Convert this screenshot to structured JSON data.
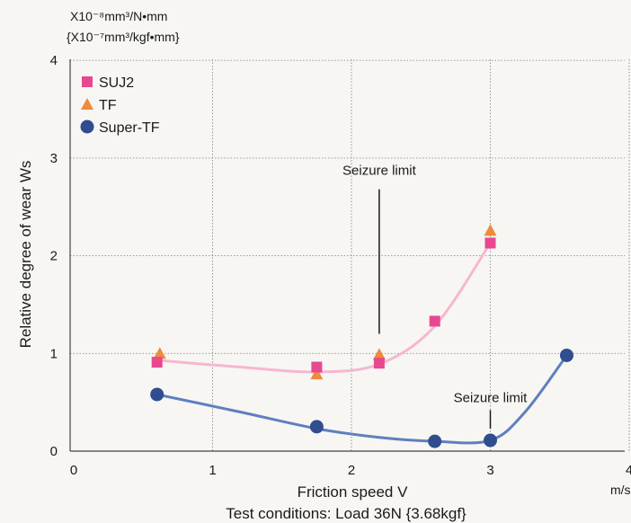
{
  "chart_data": {
    "type": "line",
    "title": "",
    "xlabel": "Friction speed V",
    "x_unit": "m/s",
    "ylabel": "Relative degree of wear Ws",
    "y_unit_lines": [
      "X10⁻⁸mm³/N•mm",
      "{X10⁻⁷mm³/kgf•mm}"
    ],
    "footnote": "Test conditions: Load 36N {3.68kgf}",
    "xlim": [
      0,
      4
    ],
    "ylim": [
      0,
      4
    ],
    "x_ticks": [
      0,
      1,
      2,
      3,
      4
    ],
    "y_ticks": [
      0,
      1,
      2,
      3,
      4
    ],
    "grid": true,
    "legend_position": "top-left",
    "series": [
      {
        "name": "SUJ2",
        "marker": "square",
        "color": "#e8488f",
        "points": [
          [
            0.6,
            0.91
          ],
          [
            1.75,
            0.86
          ],
          [
            2.2,
            0.9
          ],
          [
            2.6,
            1.33
          ],
          [
            3.0,
            2.13
          ]
        ]
      },
      {
        "name": "TF",
        "marker": "triangle",
        "color": "#f08a3c",
        "points": [
          [
            0.62,
            1.0
          ],
          [
            1.75,
            0.79
          ],
          [
            2.2,
            0.99
          ],
          [
            3.0,
            2.26
          ]
        ]
      },
      {
        "name": "Super-TF",
        "marker": "circle",
        "color": "#2f4d8f",
        "points": [
          [
            0.6,
            0.58
          ],
          [
            1.75,
            0.25
          ],
          [
            2.6,
            0.1
          ],
          [
            3.0,
            0.11
          ],
          [
            3.55,
            0.98
          ]
        ]
      }
    ],
    "curves": [
      {
        "for": "SUJ2 / TF",
        "color": "#f6b7cf",
        "points": [
          [
            0.6,
            0.93
          ],
          [
            1.2,
            0.86
          ],
          [
            1.75,
            0.81
          ],
          [
            2.2,
            0.89
          ],
          [
            2.6,
            1.28
          ],
          [
            3.0,
            2.13
          ]
        ]
      },
      {
        "for": "Super-TF",
        "color": "#5f7fbf",
        "points": [
          [
            0.6,
            0.58
          ],
          [
            1.2,
            0.4
          ],
          [
            1.75,
            0.23
          ],
          [
            2.2,
            0.14
          ],
          [
            2.6,
            0.1
          ],
          [
            3.0,
            0.11
          ],
          [
            3.25,
            0.4
          ],
          [
            3.55,
            0.98
          ]
        ]
      }
    ],
    "annotations": [
      {
        "text": "Seizure limit",
        "x": 2.2,
        "y": 2.83,
        "line_from": [
          2.2,
          2.68
        ],
        "line_to": [
          2.2,
          1.2
        ]
      },
      {
        "text": "Seizure limit",
        "x": 3.0,
        "y": 0.5,
        "line_from": [
          3.0,
          0.42
        ],
        "line_to": [
          3.0,
          0.23
        ]
      }
    ]
  }
}
